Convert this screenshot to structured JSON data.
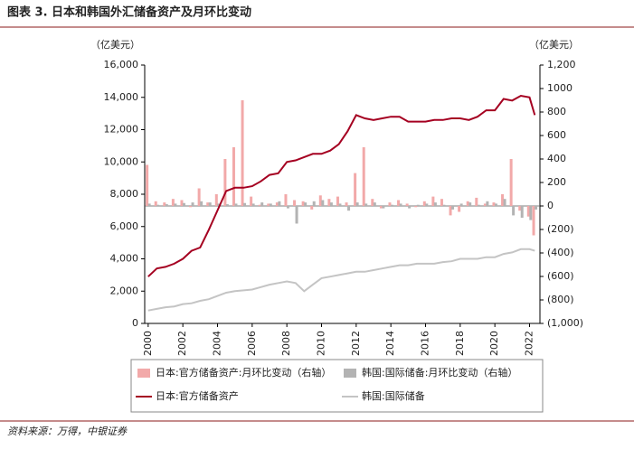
{
  "chart_data": {
    "type": "bar-line-dual",
    "title": "图表 3. 日本和韩国外汇储备资产及月环比变动",
    "y_unit": "（亿美元）",
    "y2_unit": "（亿美元）",
    "source": "资料来源：万得，中银证券",
    "x": [
      2000,
      2000.5,
      2001,
      2001.5,
      2002,
      2002.5,
      2003,
      2003.5,
      2004,
      2004.5,
      2005,
      2005.5,
      2006,
      2006.5,
      2007,
      2007.5,
      2008,
      2008.5,
      2009,
      2009.5,
      2010,
      2010.5,
      2011,
      2011.5,
      2012,
      2012.5,
      2013,
      2013.5,
      2014,
      2014.5,
      2015,
      2015.5,
      2016,
      2016.5,
      2017,
      2017.5,
      2018,
      2018.5,
      2019,
      2019.5,
      2020,
      2020.5,
      2021,
      2021.5,
      2022,
      2022.3
    ],
    "xlim": [
      1999.8,
      2022.6
    ],
    "xticks": [
      2000,
      2002,
      2004,
      2006,
      2008,
      2010,
      2012,
      2014,
      2016,
      2018,
      2020,
      2022
    ],
    "ylim": [
      0,
      16000
    ],
    "yticks": [
      0,
      {
        "value": 2000,
        "label": "2,000"
      },
      {
        "value": 4000,
        "label": "4,000"
      },
      {
        "value": 6000,
        "label": "6,000"
      },
      {
        "value": 8000,
        "label": "8,000"
      },
      {
        "value": 10000,
        "label": "10,000"
      },
      {
        "value": 12000,
        "label": "12,000"
      },
      {
        "value": 14000,
        "label": "14,000"
      },
      {
        "value": 16000,
        "label": "16,000"
      }
    ],
    "y2lim": [
      -1000,
      1200
    ],
    "y2ticks": [
      {
        "value": -1000,
        "label": "(1,000)"
      },
      {
        "value": -800,
        "label": "(800)"
      },
      {
        "value": -600,
        "label": "(600)"
      },
      {
        "value": -400,
        "label": "(400)"
      },
      {
        "value": -200,
        "label": "(200)"
      },
      0,
      200,
      400,
      600,
      800,
      1000,
      {
        "value": 1200,
        "label": "1,200"
      }
    ],
    "series": [
      {
        "name": "日本:官方储备资产:月环比变动（右轴）",
        "kind": "bar",
        "axis": "y2",
        "color": "#f2a9a9",
        "values": [
          350,
          40,
          30,
          60,
          50,
          -10,
          150,
          30,
          100,
          400,
          500,
          900,
          80,
          10,
          20,
          30,
          100,
          50,
          40,
          -30,
          90,
          60,
          80,
          30,
          280,
          500,
          60,
          -20,
          30,
          50,
          20,
          -10,
          40,
          80,
          60,
          -80,
          -50,
          40,
          70,
          20,
          30,
          100,
          400,
          -40,
          -90,
          -250
        ]
      },
      {
        "name": "韩国:国际储备:月环比变动（右轴）",
        "kind": "bar",
        "axis": "y2",
        "color": "#b3b3b3",
        "values": [
          20,
          10,
          15,
          20,
          25,
          30,
          40,
          30,
          20,
          15,
          20,
          25,
          20,
          30,
          20,
          40,
          -20,
          -150,
          30,
          40,
          50,
          30,
          20,
          -40,
          30,
          20,
          30,
          -20,
          10,
          20,
          -20,
          10,
          20,
          30,
          10,
          -30,
          20,
          30,
          10,
          40,
          20,
          60,
          -80,
          -100,
          -120,
          -30
        ]
      },
      {
        "name": "日本:官方储备资产",
        "kind": "line",
        "color": "#a50021",
        "values": [
          2900,
          3400,
          3500,
          3700,
          4000,
          4500,
          4700,
          5800,
          7000,
          8200,
          8400,
          8400,
          8500,
          8800,
          9200,
          9300,
          10000,
          10100,
          10300,
          10500,
          10500,
          10700,
          11100,
          11900,
          12900,
          12700,
          12600,
          12700,
          12800,
          12800,
          12500,
          12500,
          12500,
          12600,
          12600,
          12700,
          12700,
          12600,
          12800,
          13200,
          13200,
          13900,
          13800,
          14100,
          14000,
          12900
        ]
      },
      {
        "name": "韩国:国际储备",
        "kind": "line",
        "color": "#c4c4c4",
        "values": [
          800,
          900,
          1000,
          1050,
          1200,
          1250,
          1400,
          1500,
          1700,
          1900,
          2000,
          2050,
          2100,
          2250,
          2400,
          2500,
          2600,
          2500,
          2000,
          2400,
          2800,
          2900,
          3000,
          3100,
          3200,
          3200,
          3300,
          3400,
          3500,
          3600,
          3600,
          3700,
          3700,
          3700,
          3800,
          3850,
          4000,
          4000,
          4000,
          4100,
          4100,
          4300,
          4400,
          4600,
          4600,
          4500
        ]
      }
    ]
  }
}
